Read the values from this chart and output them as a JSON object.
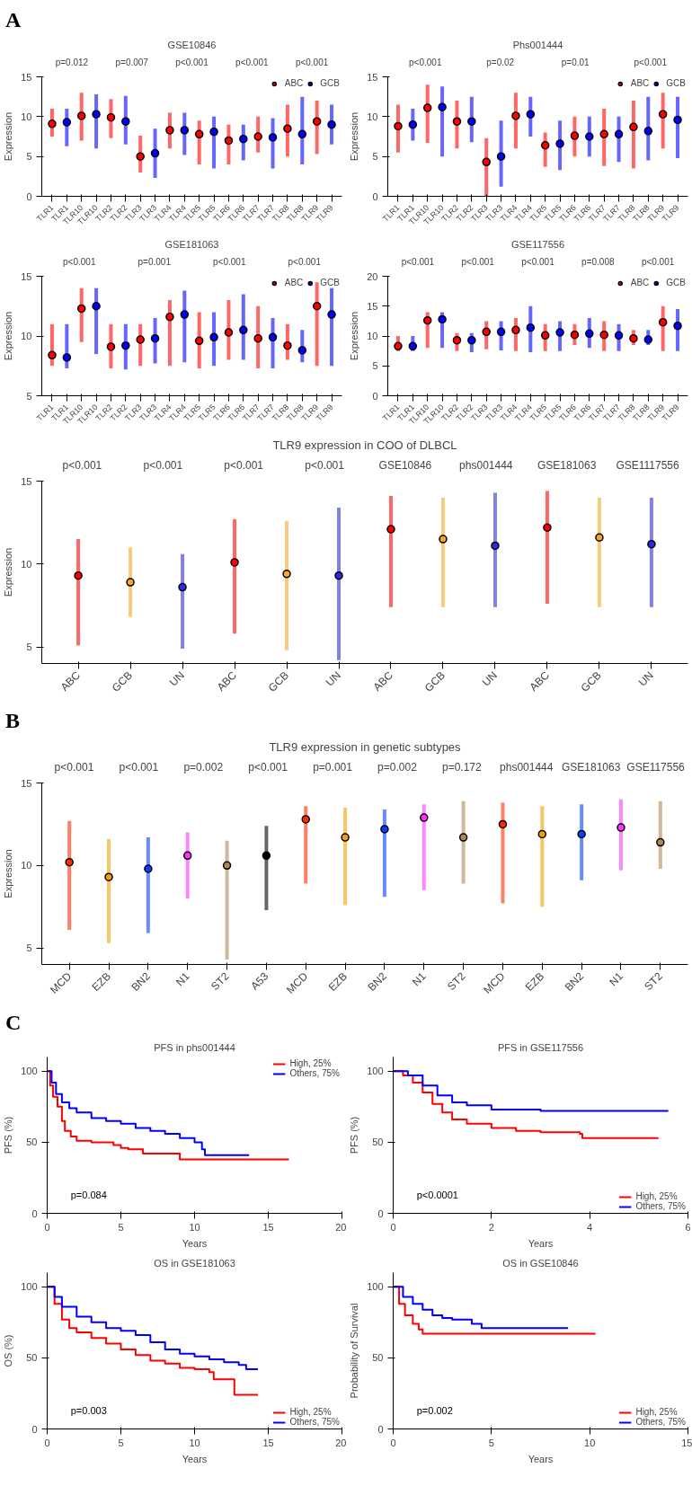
{
  "chart_data": [
    {
      "type": "other",
      "title": "A"
    },
    {
      "type": "scatter",
      "title": "GSE10846",
      "ylabel": "Expression",
      "legend": "top right",
      "marker": "circle",
      "ylim": [
        0,
        15
      ],
      "yticks": [
        0,
        5,
        10,
        15
      ],
      "categories": [
        "TLR1",
        "TLR1",
        "TLR10",
        "TLR10",
        "TLR2",
        "TLR2",
        "TLR3",
        "TLR3",
        "TLR4",
        "TLR4",
        "TLR5",
        "TLR5",
        "TLR6",
        "TLR6",
        "TLR7",
        "TLR7",
        "TLR8",
        "TLR8",
        "TLR9",
        "TLR9"
      ],
      "series": [
        {
          "name": "ABC",
          "color": "#ff0000",
          "values": [
            9.1,
            null,
            10.1,
            null,
            9.9,
            null,
            5.0,
            null,
            8.3,
            null,
            7.8,
            null,
            7.0,
            null,
            7.5,
            null,
            8.5,
            null,
            9.4,
            null
          ],
          "errors": [
            [
              7.5,
              11
            ],
            null,
            [
              7,
              13
            ],
            null,
            [
              7.3,
              12.2
            ],
            null,
            [
              3,
              7.6
            ],
            null,
            [
              6,
              10.5
            ],
            null,
            [
              4,
              9.5
            ],
            null,
            [
              4,
              9
            ],
            null,
            [
              5.5,
              10
            ],
            null,
            [
              5,
              11.5
            ],
            null,
            [
              5.3,
              12
            ],
            null
          ]
        },
        {
          "name": "GCB",
          "color": "#0000ff",
          "values": [
            null,
            9.3,
            null,
            10.3,
            null,
            9.4,
            null,
            5.4,
            null,
            8.3,
            null,
            8.1,
            null,
            7.2,
            null,
            7.4,
            null,
            7.8,
            null,
            9.0
          ],
          "errors": [
            null,
            [
              6.3,
              11
            ],
            null,
            [
              6,
              12.8
            ],
            null,
            [
              6.5,
              12.6
            ],
            null,
            [
              2.3,
              8.5
            ],
            null,
            [
              5.2,
              10.5
            ],
            null,
            [
              3.5,
              10
            ],
            null,
            [
              4.5,
              9
            ],
            null,
            [
              3.5,
              9.8
            ],
            null,
            [
              4,
              12.5
            ],
            null,
            [
              6.5,
              11.5
            ]
          ]
        }
      ],
      "annotations": [
        "p=0.012",
        "p=0.007",
        "p<0.001",
        "p<0.001",
        "p<0.001"
      ]
    },
    {
      "type": "scatter",
      "title": "Phs001444",
      "ylabel": "Expression",
      "legend": "top right",
      "marker": "circle",
      "ylim": [
        0,
        15
      ],
      "yticks": [
        0,
        5,
        10,
        15
      ],
      "categories": [
        "TLR1",
        "TLR1",
        "TLR10",
        "TLR10",
        "TLR2",
        "TLR2",
        "TLR3",
        "TLR3",
        "TLR4",
        "TLR4",
        "TLR5",
        "TLR5",
        "TLR6",
        "TLR6",
        "TLR7",
        "TLR7",
        "TLR8",
        "TLR8",
        "TLR9",
        "TLR9"
      ],
      "series": [
        {
          "name": "ABC",
          "color": "#ff0000",
          "values": [
            8.8,
            null,
            11.1,
            null,
            9.4,
            null,
            4.3,
            null,
            10.1,
            null,
            6.4,
            null,
            7.6,
            null,
            7.8,
            null,
            8.7,
            null,
            10.3,
            null
          ],
          "errors": [
            [
              5.5,
              11.5
            ],
            null,
            [
              6.7,
              14
            ],
            null,
            [
              6,
              12
            ],
            null,
            [
              0,
              7.3
            ],
            null,
            [
              6,
              13
            ],
            null,
            [
              3.7,
              8
            ],
            null,
            [
              5,
              10
            ],
            null,
            [
              3.8,
              11
            ],
            null,
            [
              3.5,
              12
            ],
            null,
            [
              6,
              13
            ],
            null
          ]
        },
        {
          "name": "GCB",
          "color": "#0000ff",
          "values": [
            null,
            9.0,
            null,
            11.2,
            null,
            9.4,
            null,
            5.0,
            null,
            10.3,
            null,
            6.6,
            null,
            7.5,
            null,
            7.8,
            null,
            8.2,
            null,
            9.6
          ],
          "errors": [
            null,
            [
              7,
              11
            ],
            null,
            [
              5,
              13.8
            ],
            null,
            [
              6.8,
              12.5
            ],
            null,
            [
              1.2,
              9.5
            ],
            null,
            [
              7.5,
              12.5
            ],
            null,
            [
              3.3,
              9.5
            ],
            null,
            [
              5,
              10
            ],
            null,
            [
              4.3,
              10
            ],
            null,
            [
              4.5,
              12.5
            ],
            null,
            [
              4.8,
              12.5
            ]
          ]
        }
      ],
      "annotations": [
        "p<0.001",
        "p=0.02",
        "p=0.01",
        "p<0.001"
      ]
    },
    {
      "type": "scatter",
      "title": "GSE181063",
      "ylabel": "Expression",
      "legend": "top right",
      "marker": "circle",
      "ylim": [
        5,
        15
      ],
      "yticks": [
        5,
        10,
        15
      ],
      "categories": [
        "TLR1",
        "TLR1",
        "TLR10",
        "TLR10",
        "TLR2",
        "TLR2",
        "TLR3",
        "TLR3",
        "TLR4",
        "TLR4",
        "TLR5",
        "TLR5",
        "TLR6",
        "TLR6",
        "TLR7",
        "TLR7",
        "TLR8",
        "TLR8",
        "TLR9",
        "TLR9"
      ],
      "series": [
        {
          "name": "ABC",
          "color": "#ff0000",
          "values": [
            8.4,
            null,
            12.3,
            null,
            9.1,
            null,
            9.7,
            null,
            11.6,
            null,
            9.6,
            null,
            10.3,
            null,
            9.8,
            null,
            9.2,
            null,
            12.5,
            null
          ],
          "errors": [
            [
              7.5,
              11
            ],
            null,
            [
              9.5,
              14
            ],
            null,
            [
              7.3,
              11
            ],
            null,
            [
              7.5,
              11
            ],
            null,
            [
              7.5,
              13
            ],
            null,
            [
              7.3,
              12
            ],
            null,
            [
              8,
              13
            ],
            null,
            [
              7.3,
              12.5
            ],
            null,
            [
              8,
              11
            ],
            null,
            [
              7.5,
              14.5
            ],
            null
          ]
        },
        {
          "name": "GCB",
          "color": "#0000ff",
          "values": [
            null,
            8.2,
            null,
            12.5,
            null,
            9.2,
            null,
            9.8,
            null,
            11.8,
            null,
            9.9,
            null,
            10.5,
            null,
            9.9,
            null,
            8.8,
            null,
            11.8
          ],
          "errors": [
            null,
            [
              7.3,
              11
            ],
            null,
            [
              8.5,
              14
            ],
            null,
            [
              7.2,
              11
            ],
            null,
            [
              7.7,
              11.5
            ],
            null,
            [
              7.8,
              13.8
            ],
            null,
            [
              7.5,
              12
            ],
            null,
            [
              8,
              13.5
            ],
            null,
            [
              7.3,
              11.5
            ],
            null,
            [
              7.8,
              10.5
            ],
            null,
            [
              7.5,
              14
            ]
          ]
        }
      ],
      "annotations": [
        "p<0.001",
        "p=0.001",
        "p<0.001",
        "p<0.001"
      ]
    },
    {
      "type": "scatter",
      "title": "GSE117556",
      "ylabel": "Expression",
      "legend": "top right",
      "marker": "circle",
      "ylim": [
        0,
        20
      ],
      "yticks": [
        0,
        5,
        10,
        15,
        20
      ],
      "categories": [
        "TLR1",
        "TLR1",
        "TLR10",
        "TLR10",
        "TLR2",
        "TLR2",
        "TLR3",
        "TLR3",
        "TLR4",
        "TLR4",
        "TLR5",
        "TLR5",
        "TLR6",
        "TLR6",
        "TLR7",
        "TLR7",
        "TLR8",
        "TLR8",
        "TLR9",
        "TLR9"
      ],
      "series": [
        {
          "name": "ABC",
          "color": "#ff0000",
          "values": [
            8.3,
            null,
            12.6,
            null,
            9.3,
            null,
            10.7,
            null,
            11.0,
            null,
            10.1,
            null,
            10.2,
            null,
            10.2,
            null,
            9.6,
            null,
            12.3,
            null
          ],
          "errors": [
            [
              7.5,
              10
            ],
            null,
            [
              8,
              14
            ],
            null,
            [
              7.5,
              10.5
            ],
            null,
            [
              7.8,
              12.5
            ],
            null,
            [
              7.5,
              13
            ],
            null,
            [
              7.5,
              12
            ],
            null,
            [
              8.5,
              12
            ],
            null,
            [
              7.5,
              12.5
            ],
            null,
            [
              8.5,
              11
            ],
            null,
            [
              7.5,
              15
            ],
            null
          ]
        },
        {
          "name": "GCB",
          "color": "#0000ff",
          "values": [
            null,
            8.3,
            null,
            12.8,
            null,
            9.3,
            null,
            10.7,
            null,
            11.4,
            null,
            10.6,
            null,
            10.4,
            null,
            10.1,
            null,
            9.4,
            null,
            11.7
          ],
          "errors": [
            null,
            [
              7.5,
              10
            ],
            null,
            [
              8,
              14
            ],
            null,
            [
              7.3,
              10.5
            ],
            null,
            [
              7.6,
              12.5
            ],
            null,
            [
              7.3,
              15
            ],
            null,
            [
              7.5,
              12.5
            ],
            null,
            [
              8,
              13
            ],
            null,
            [
              7.5,
              12
            ],
            null,
            [
              8.5,
              11
            ],
            null,
            [
              7.5,
              14.5
            ]
          ]
        }
      ],
      "annotations": [
        "p<0.001",
        "p<0.001",
        "p<0.001",
        "p=0.008",
        "p<0.001"
      ]
    },
    {
      "type": "scatter",
      "title": "TLR9 expression in COO of DLBCL",
      "ylabel": "Expression",
      "marker": "circle",
      "ylim": [
        4,
        15
      ],
      "yticks": [
        5,
        10,
        15
      ],
      "categories": [
        "ABC",
        "GCB",
        "UN",
        "ABC",
        "GCB",
        "UN",
        "ABC",
        "GCB",
        "UN",
        "ABC",
        "GCB",
        "UN"
      ],
      "values": [
        9.3,
        8.9,
        8.6,
        10.1,
        9.4,
        9.3,
        12.1,
        11.5,
        11.1,
        12.2,
        11.6,
        11.2
      ],
      "errors": [
        [
          5.1,
          11.5
        ],
        [
          6.8,
          11
        ],
        [
          4.9,
          10.6
        ],
        [
          5.8,
          12.7
        ],
        [
          4.8,
          12.6
        ],
        [
          4.2,
          13.4
        ],
        [
          7.4,
          14.1
        ],
        [
          7.4,
          14
        ],
        [
          7.4,
          14.3
        ],
        [
          7.6,
          14.4
        ],
        [
          7.4,
          14
        ],
        [
          7.4,
          14
        ]
      ],
      "colors": [
        "#ff0000",
        "#f5a623",
        "#2b2bd9",
        "#ff0000",
        "#f5a623",
        "#2b2bd9",
        "#ff0000",
        "#f5a623",
        "#2b2bd9",
        "#ff0000",
        "#f5a623",
        "#2b2bd9"
      ],
      "annotations": [
        "p<0.001",
        "p<0.001",
        "p<0.001",
        "p<0.001",
        "GSE10846",
        "phs001444",
        "GSE181063",
        "GSE1117556"
      ]
    },
    {
      "type": "other",
      "title": "B"
    },
    {
      "type": "scatter",
      "title": "TLR9 expression in genetic subtypes",
      "ylabel": "Expression",
      "marker": "circle",
      "ylim": [
        4,
        15
      ],
      "yticks": [
        5,
        10,
        15
      ],
      "categories": [
        "MCD",
        "EZB",
        "BN2",
        "N1",
        "ST2",
        "A53",
        "MCD",
        "EZB",
        "BN2",
        "N1",
        "ST2",
        "MCD",
        "EZB",
        "BN2",
        "N1",
        "ST2"
      ],
      "values": [
        10.2,
        9.3,
        9.8,
        10.6,
        10.0,
        10.6,
        12.8,
        11.7,
        12.2,
        12.9,
        11.7,
        12.5,
        11.9,
        11.9,
        12.3,
        11.4
      ],
      "errors": [
        [
          6.1,
          12.7
        ],
        [
          5.3,
          11.6
        ],
        [
          5.9,
          11.7
        ],
        [
          8.0,
          12.0
        ],
        [
          4.3,
          11.5
        ],
        [
          7.3,
          12.4
        ],
        [
          8.9,
          13.6
        ],
        [
          7.6,
          13.5
        ],
        [
          8.1,
          13.4
        ],
        [
          8.5,
          13.7
        ],
        [
          8.9,
          13.9
        ],
        [
          7.7,
          13.8
        ],
        [
          7.5,
          13.6
        ],
        [
          9.1,
          13.7
        ],
        [
          9.7,
          14.0
        ],
        [
          9.8,
          13.9
        ]
      ],
      "colors": [
        "#ff2a00",
        "#f5a000",
        "#0040ff",
        "#ff33ff",
        "#b08850",
        "#000000",
        "#ff2a00",
        "#f5a000",
        "#0040ff",
        "#ff33ff",
        "#b08850",
        "#ff2a00",
        "#f5a000",
        "#0040ff",
        "#ff33ff",
        "#b08850"
      ],
      "annotations": [
        "p<0.001",
        "p<0.001",
        "p=0.002",
        "p<0.001",
        "p=0.001",
        "p=0.002",
        "p=0.172",
        "phs001444",
        "GSE181063",
        "GSE117556"
      ]
    },
    {
      "type": "other",
      "title": "C"
    },
    {
      "type": "step",
      "title": "PFS in phs001444",
      "xlabel": "Years",
      "ylabel": "PFS (%)",
      "legend": "top right",
      "xlim": [
        0,
        20
      ],
      "xticks": [
        0,
        5,
        10,
        15,
        20
      ],
      "ylim": [
        0,
        110
      ],
      "yticks": [
        0,
        50,
        100
      ],
      "series": [
        {
          "name": "High, 25%",
          "color": "#ff0000",
          "x": [
            0,
            0.2,
            0.4,
            0.7,
            1,
            1.2,
            1.6,
            2,
            3,
            4.5,
            5,
            5.5,
            6.5,
            8,
            9,
            16.4
          ],
          "values": [
            100,
            90,
            82,
            75,
            65,
            58,
            54,
            51,
            50,
            48,
            46,
            45,
            42,
            42,
            38,
            38
          ]
        },
        {
          "name": "Others, 75%",
          "color": "#0000ff",
          "x": [
            0,
            0.3,
            0.6,
            1,
            1.5,
            2,
            3,
            4,
            5,
            6,
            7,
            8,
            9,
            10,
            10.5,
            10.7,
            13.7
          ],
          "values": [
            100,
            92,
            84,
            78,
            74,
            71,
            67,
            65,
            63,
            60,
            58,
            56,
            53,
            50,
            45,
            41,
            41
          ]
        }
      ],
      "annotations": [
        "p=0.084"
      ]
    },
    {
      "type": "step",
      "title": "PFS in GSE117556",
      "xlabel": "Years",
      "ylabel": "PFS (%)",
      "legend": "bottom right",
      "xlim": [
        0,
        6
      ],
      "xticks": [
        0,
        2,
        4,
        6
      ],
      "ylim": [
        0,
        110
      ],
      "yticks": [
        0,
        50,
        100
      ],
      "series": [
        {
          "name": "High, 25%",
          "color": "#ff0000",
          "x": [
            0,
            0.2,
            0.4,
            0.6,
            0.8,
            1,
            1.2,
            1.5,
            2,
            2.5,
            3,
            3.8,
            3.85,
            5.4
          ],
          "values": [
            100,
            97,
            92,
            85,
            77,
            71,
            66,
            63,
            60,
            58,
            57,
            56,
            53,
            53
          ]
        },
        {
          "name": "Others, 75%",
          "color": "#0000ff",
          "x": [
            0,
            0.3,
            0.6,
            0.9,
            1.2,
            1.5,
            2,
            3,
            4,
            5.6
          ],
          "values": [
            100,
            97,
            90,
            83,
            78,
            76,
            73,
            72,
            72,
            72
          ]
        }
      ],
      "annotations": [
        "p<0.0001"
      ]
    },
    {
      "type": "step",
      "title": "OS in GSE181063",
      "xlabel": "Years",
      "ylabel": "OS (%)",
      "legend": "bottom right",
      "xlim": [
        0,
        20
      ],
      "xticks": [
        0,
        5,
        10,
        15,
        20
      ],
      "ylim": [
        0,
        110
      ],
      "yticks": [
        0,
        50,
        100
      ],
      "series": [
        {
          "name": "High, 25%",
          "color": "#ff0000",
          "x": [
            0,
            0.5,
            1,
            1.5,
            2,
            3,
            4,
            5,
            6,
            7,
            8,
            9,
            10,
            11,
            11.3,
            12.3,
            12.7,
            14.3
          ],
          "values": [
            100,
            88,
            77,
            71,
            68,
            64,
            60,
            56,
            52,
            48,
            46,
            43,
            42,
            40,
            35,
            35,
            24,
            24
          ]
        },
        {
          "name": "Others, 75%",
          "color": "#0000ff",
          "x": [
            0,
            0.5,
            1,
            2,
            3,
            4,
            5,
            6,
            7,
            8,
            9,
            10,
            11,
            12,
            13,
            13.5,
            14.3
          ],
          "values": [
            100,
            93,
            86,
            79,
            75,
            71,
            69,
            66,
            61,
            56,
            53,
            51,
            49,
            47,
            45,
            42,
            42
          ]
        }
      ],
      "annotations": [
        "p=0.003"
      ]
    },
    {
      "type": "step",
      "title": "OS in GSE10846",
      "xlabel": "Years",
      "ylabel": "Probability of Survival",
      "legend": "bottom right",
      "xlim": [
        0,
        15
      ],
      "xticks": [
        0,
        5,
        10,
        15
      ],
      "ylim": [
        0,
        110
      ],
      "yticks": [
        0,
        50,
        100
      ],
      "series": [
        {
          "name": "High, 25%",
          "color": "#ff0000",
          "x": [
            0,
            0.3,
            0.6,
            1,
            1.3,
            1.5,
            10.3
          ],
          "values": [
            100,
            88,
            80,
            74,
            70,
            67,
            67
          ]
        },
        {
          "name": "Others, 75%",
          "color": "#0000ff",
          "x": [
            0,
            0.5,
            1,
            1.5,
            2,
            2.5,
            3,
            3.8,
            4,
            4.5,
            8.9
          ],
          "values": [
            100,
            93,
            88,
            84,
            80,
            78,
            77,
            77,
            74,
            71,
            71
          ]
        }
      ],
      "annotations": [
        "p=0.002"
      ]
    }
  ]
}
